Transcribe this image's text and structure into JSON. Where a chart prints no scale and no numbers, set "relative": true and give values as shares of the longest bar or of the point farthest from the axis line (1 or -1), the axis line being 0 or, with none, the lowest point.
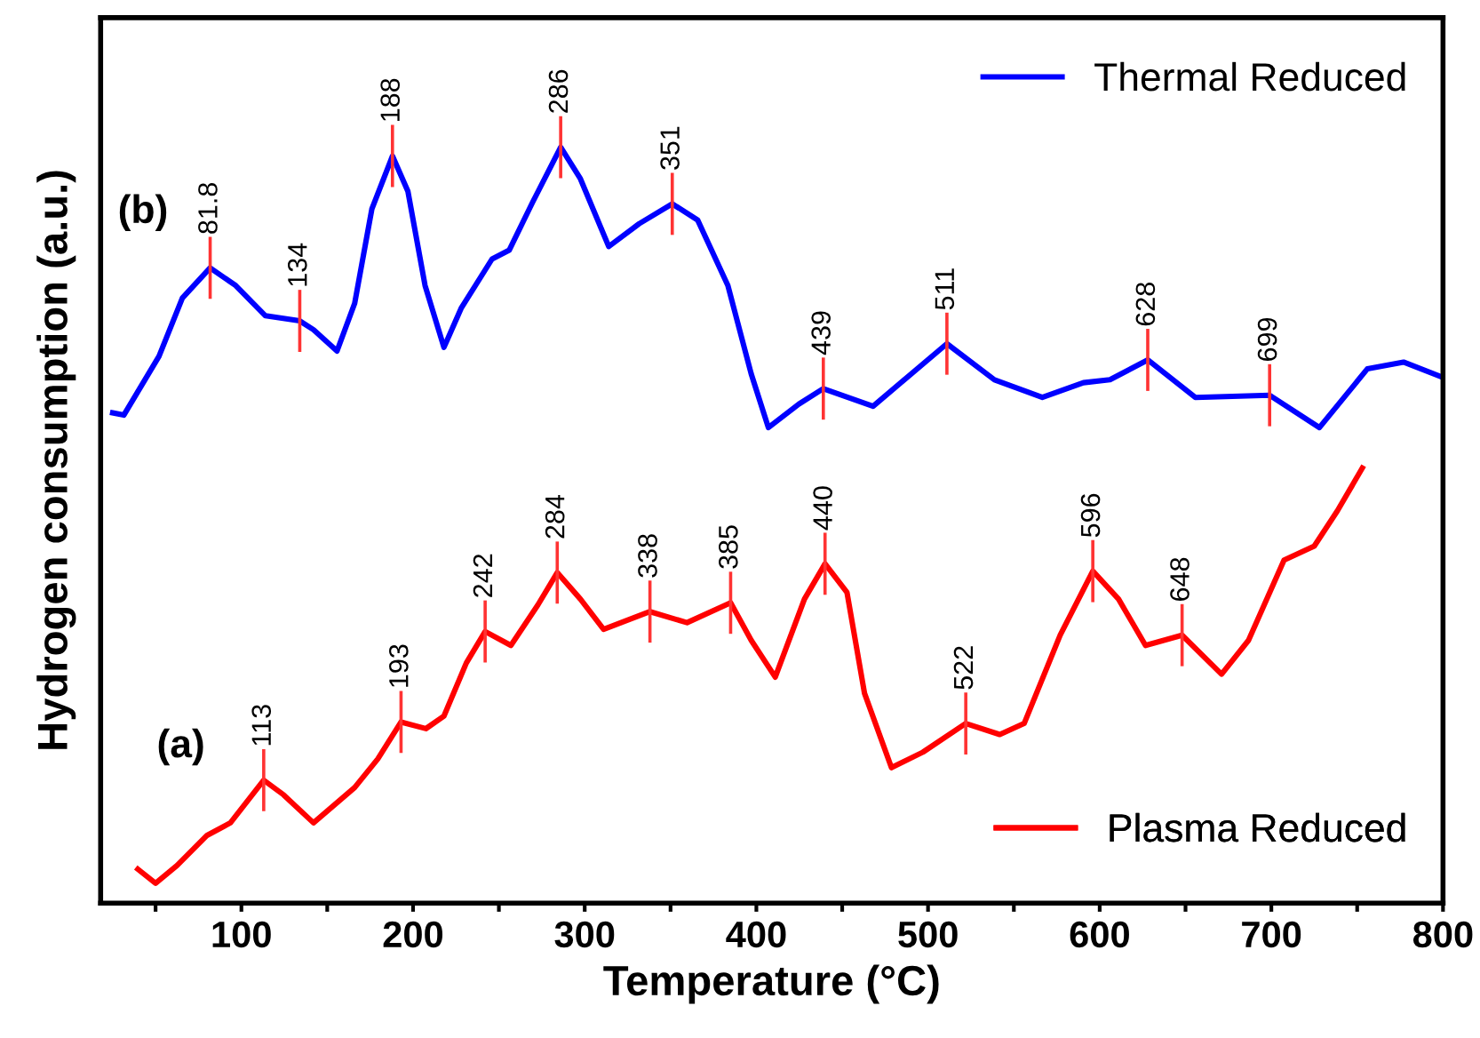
{
  "chart_data": {
    "type": "line",
    "xlabel": "Temperature (°C)",
    "ylabel": "Hydrogen consumption (a.u.)",
    "relative": true,
    "legend": "right",
    "grid": false,
    "xlim": [
      18,
      800
    ],
    "xticks": [
      {
        "value": 50,
        "label": null
      },
      100,
      {
        "value": 150,
        "label": null
      },
      200,
      {
        "value": 250,
        "label": null
      },
      300,
      {
        "value": 350,
        "label": null
      },
      400,
      {
        "value": 450,
        "label": null
      },
      500,
      {
        "value": 550,
        "label": null
      },
      600,
      {
        "value": 650,
        "label": null
      },
      700,
      {
        "value": 750,
        "label": null
      },
      800
    ],
    "series": [
      {
        "name": "Thermal Reduced",
        "color": "#0000ff",
        "x": [
          25,
          31.5,
          52,
          65.6,
          81.8,
          96.7,
          114,
          134,
          142,
          155.7,
          166,
          176,
          188,
          197,
          207,
          218,
          228,
          246,
          256,
          269.6,
          286,
          297.5,
          314,
          331.7,
          351,
          365.8,
          383.4,
          397,
          407,
          424.8,
          439,
          468,
          511,
          538.7,
          566.6,
          590.5,
          606,
          628,
          655.7,
          699,
          728,
          756,
          777,
          800
        ],
        "values": [
          0.639,
          0.636,
          0.716,
          0.795,
          0.836,
          0.812,
          0.771,
          0.764,
          0.752,
          0.723,
          0.788,
          0.916,
          0.988,
          0.94,
          0.812,
          0.728,
          0.781,
          0.848,
          0.86,
          0.925,
          1.0,
          0.957,
          0.865,
          0.896,
          0.923,
          0.901,
          0.812,
          0.692,
          0.619,
          0.651,
          0.672,
          0.648,
          0.733,
          0.684,
          0.66,
          0.68,
          0.684,
          0.711,
          0.66,
          0.663,
          0.619,
          0.699,
          0.708,
          0.687
        ]
      },
      {
        "name": "Plasma Reduced",
        "color": "#ff0000",
        "x": [
          39.7,
          50,
          62.5,
          80,
          93.6,
          113,
          124.6,
          142,
          166,
          179.5,
          193,
          207.5,
          218,
          231,
          242,
          257,
          272.7,
          284,
          297.5,
          311,
          338,
          359.6,
          385,
          397,
          411,
          428,
          440,
          452.8,
          463,
          478.7,
          497,
          522,
          541.8,
          556,
          577,
          596,
          611,
          626.7,
          648,
          671,
          686.7,
          707.4,
          725,
          738.5,
          753
        ],
        "values": [
          0.019,
          0,
          0.024,
          0.065,
          0.082,
          0.14,
          0.12,
          0.082,
          0.13,
          0.169,
          0.219,
          0.21,
          0.227,
          0.299,
          0.342,
          0.323,
          0.378,
          0.422,
          0.386,
          0.345,
          0.369,
          0.354,
          0.381,
          0.33,
          0.28,
          0.386,
          0.434,
          0.395,
          0.258,
          0.157,
          0.178,
          0.217,
          0.202,
          0.217,
          0.337,
          0.424,
          0.386,
          0.323,
          0.337,
          0.284,
          0.33,
          0.439,
          0.458,
          0.506,
          0.564
        ]
      }
    ],
    "annotations": [
      "(b)",
      "(a)",
      {
        "text": "81.8",
        "x": 81.8,
        "y": 0.836
      },
      {
        "text": "134",
        "x": 134,
        "y": 0.764
      },
      {
        "text": "188",
        "x": 188,
        "y": 0.988
      },
      {
        "text": "286",
        "x": 286,
        "y": 1.0
      },
      {
        "text": "351",
        "x": 351,
        "y": 0.923
      },
      {
        "text": "439",
        "x": 439,
        "y": 0.672
      },
      {
        "text": "511",
        "x": 511,
        "y": 0.733
      },
      {
        "text": "628",
        "x": 628,
        "y": 0.711
      },
      {
        "text": "699",
        "x": 699,
        "y": 0.663
      },
      {
        "text": "113",
        "x": 113,
        "y": 0.14
      },
      {
        "text": "193",
        "x": 193,
        "y": 0.219
      },
      {
        "text": "242",
        "x": 242,
        "y": 0.342
      },
      {
        "text": "284",
        "x": 284,
        "y": 0.422
      },
      {
        "text": "338",
        "x": 338,
        "y": 0.369
      },
      {
        "text": "385",
        "x": 385,
        "y": 0.381
      },
      {
        "text": "440",
        "x": 440,
        "y": 0.434
      },
      {
        "text": "522",
        "x": 522,
        "y": 0.217
      },
      {
        "text": "596",
        "x": 596,
        "y": 0.424
      },
      {
        "text": "648",
        "x": 648,
        "y": 0.337
      }
    ]
  }
}
